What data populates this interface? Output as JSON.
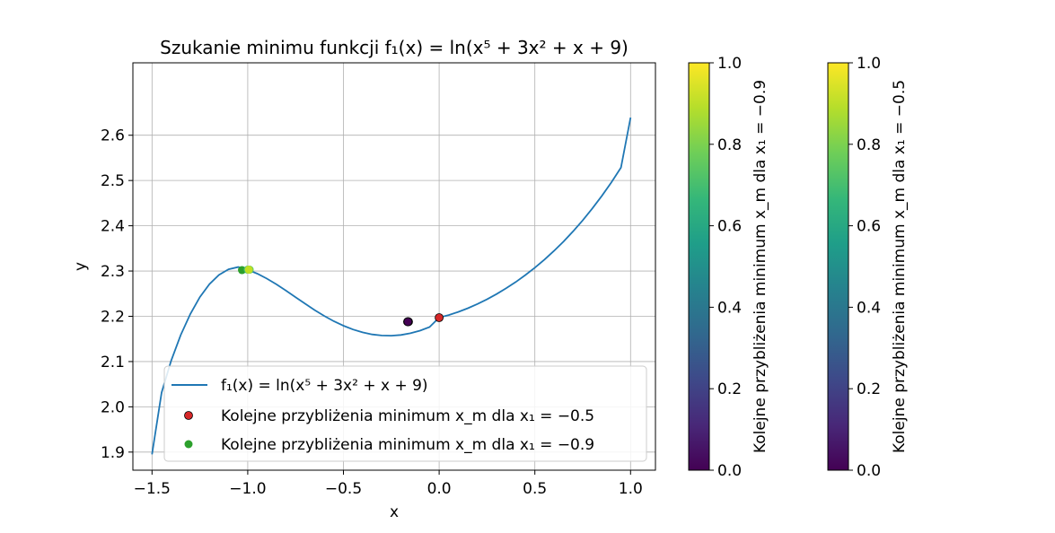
{
  "chart_data": [
    {
      "type": "line",
      "title": "Szukanie minimu funkcji f₁(x) = ln(x⁵ + 3x² + x + 9)",
      "xlabel": "x",
      "ylabel": "y",
      "xlim": [
        -1.6,
        1.13
      ],
      "ylim": [
        1.86,
        2.76
      ],
      "grid": true,
      "legend_position": "lower center",
      "x_ticks": [
        -1.5,
        -1.0,
        -0.5,
        0.0,
        0.5,
        1.0
      ],
      "x_tick_labels": [
        "−1.5",
        "−1.0",
        "−0.5",
        "0.0",
        "0.5",
        "1.0"
      ],
      "y_ticks": [
        1.9,
        2.0,
        2.1,
        2.2,
        2.3,
        2.4,
        2.5,
        2.6
      ],
      "y_tick_labels": [
        "1.9",
        "2.0",
        "2.1",
        "2.2",
        "2.3",
        "2.4",
        "2.5",
        "2.6"
      ],
      "line_series": {
        "name": "f₁(x) = ln(x⁵ + 3x² + x + 9)",
        "color": "#1f77b4",
        "x": [
          -1.5,
          -1.45,
          -1.4,
          -1.35,
          -1.3,
          -1.25,
          -1.2,
          -1.15,
          -1.1,
          -1.05,
          -1.0,
          -0.95,
          -0.9,
          -0.85,
          -0.8,
          -0.75,
          -0.7,
          -0.65,
          -0.6,
          -0.55,
          -0.5,
          -0.45,
          -0.4,
          -0.35,
          -0.3,
          -0.25,
          -0.2,
          -0.15,
          -0.1,
          -0.05,
          0.0,
          0.05,
          0.1,
          0.15,
          0.2,
          0.25,
          0.3,
          0.35,
          0.4,
          0.45,
          0.5,
          0.55,
          0.6,
          0.65,
          0.7,
          0.75,
          0.8,
          0.85,
          0.9,
          0.95,
          1.0
        ],
        "y": [
          1.8949,
          2.0314,
          2.1018,
          2.1588,
          2.2052,
          2.2424,
          2.2711,
          2.2915,
          2.3038,
          2.3089,
          2.3026,
          2.2941,
          2.2833,
          2.2706,
          2.2567,
          2.2422,
          2.2277,
          2.2137,
          2.2008,
          2.1891,
          2.1791,
          2.1708,
          2.1644,
          2.1599,
          2.1575,
          2.1571,
          2.1588,
          2.1625,
          2.1683,
          2.1761,
          2.1972,
          2.2028,
          2.2097,
          2.2178,
          2.2271,
          2.2375,
          2.2491,
          2.2619,
          2.2758,
          2.291,
          2.3075,
          2.3253,
          2.3445,
          2.3653,
          2.3877,
          2.4119,
          2.438,
          2.466,
          2.4961,
          2.5284,
          2.6391
        ]
      },
      "scatter_series": [
        {
          "name": "Kolejne przybliżenia minimum x_m dla x₁ = −0.5",
          "legend_color": "#d62728",
          "points": [
            {
              "x": 0.0,
              "y": 2.197,
              "color": "#d62728"
            },
            {
              "x": -0.16,
              "y": 2.188,
              "color": "#3b528b"
            },
            {
              "x": -0.165,
              "y": 2.188,
              "color": "#31688e"
            },
            {
              "x": -0.163,
              "y": 2.188,
              "color": "#440154"
            }
          ]
        },
        {
          "name": "Kolejne przybliżenia minimum x_m dla x₁ = −0.9",
          "legend_color": "#2ca02c",
          "points": [
            {
              "x": -1.03,
              "y": 2.302,
              "color": "#2ca02c"
            },
            {
              "x": -1.0,
              "y": 2.303,
              "color": "#35b779"
            },
            {
              "x": -0.99,
              "y": 2.303,
              "color": "#5ec962"
            },
            {
              "x": -0.995,
              "y": 2.303,
              "color": "#c2df23"
            }
          ]
        }
      ]
    },
    {
      "type": "heatmap",
      "role": "colorbar",
      "colormap": "viridis",
      "clim": [
        0.0,
        1.0
      ],
      "ticks": [
        0.0,
        0.2,
        0.4,
        0.6,
        0.8,
        1.0
      ],
      "tick_labels": [
        "0.0",
        "0.2",
        "0.4",
        "0.6",
        "0.8",
        "1.0"
      ],
      "label": "Kolejne przybliżenia minimum x_m dla x₁ = −0.9"
    },
    {
      "type": "heatmap",
      "role": "colorbar",
      "colormap": "viridis",
      "clim": [
        0.0,
        1.0
      ],
      "ticks": [
        0.0,
        0.2,
        0.4,
        0.6,
        0.8,
        1.0
      ],
      "tick_labels": [
        "0.0",
        "0.2",
        "0.4",
        "0.6",
        "0.8",
        "1.0"
      ],
      "label": "Kolejne przybliżenia minimum x_m dla x₁ = −0.5"
    }
  ],
  "viridis_stops": [
    "#440154",
    "#482878",
    "#3e4989",
    "#31688e",
    "#26828e",
    "#1f9e89",
    "#35b779",
    "#6ece58",
    "#b5de2b",
    "#fde725"
  ]
}
